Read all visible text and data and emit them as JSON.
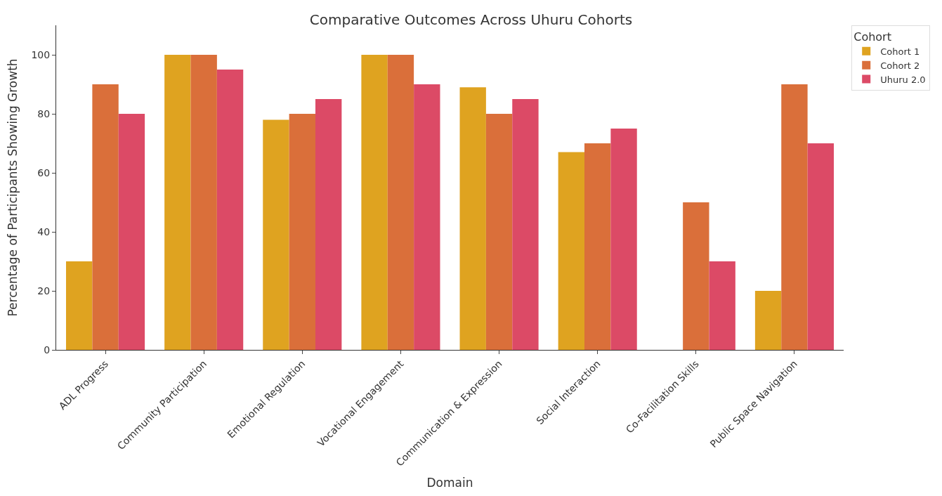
{
  "chart_data": {
    "type": "bar",
    "title": "Comparative Outcomes Across Uhuru Cohorts",
    "xlabel": "Domain",
    "ylabel": "Percentage of Participants Showing Growth",
    "legend_title": "Cohort",
    "categories": [
      "ADL Progress",
      "Community Participation",
      "Emotional Regulation",
      "Vocational Engagement",
      "Communication & Expression",
      "Social Interaction",
      "Co-Facilitation Skills",
      "Public Space Navigation"
    ],
    "series": [
      {
        "name": "Cohort 1",
        "color": "#dfa320",
        "values": [
          30,
          100,
          78,
          100,
          89,
          67,
          null,
          20
        ]
      },
      {
        "name": "Cohort 2",
        "color": "#da6f3a",
        "values": [
          90,
          100,
          80,
          100,
          80,
          70,
          50,
          90
        ]
      },
      {
        "name": "Uhuru 2.0",
        "color": "#dc4a66",
        "values": [
          80,
          95,
          85,
          90,
          85,
          75,
          30,
          70
        ]
      }
    ],
    "ylim": [
      0,
      110
    ],
    "yticks": [
      0,
      20,
      40,
      60,
      80,
      100
    ],
    "legend": "top right"
  }
}
